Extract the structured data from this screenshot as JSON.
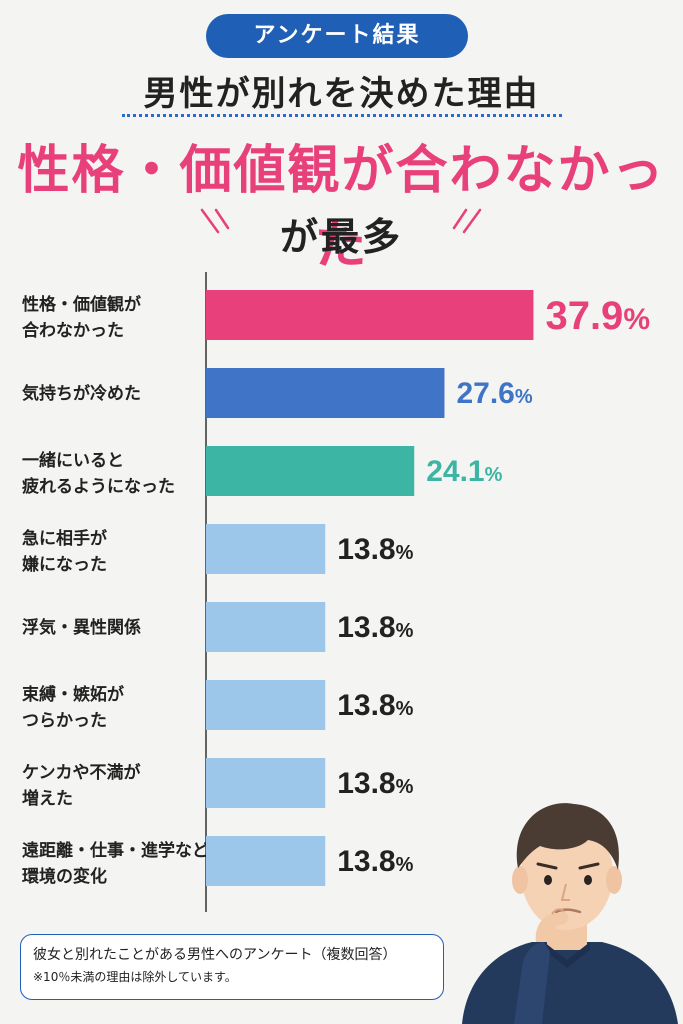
{
  "header": {
    "badge": "アンケート結果",
    "subtitle": "男性が別れを決めた理由",
    "headline": "性格・価値観が合わなかった",
    "headline2": "が最多"
  },
  "colors": {
    "accent_pink": "#e8407a",
    "blue": "#3f74c7",
    "teal": "#3db5a4",
    "light_blue": "#9cc6ea",
    "badge_blue": "#1f5fb5"
  },
  "chart_data": {
    "type": "bar",
    "orientation": "horizontal",
    "categories": [
      [
        "性格・価値観が",
        "合わなかった"
      ],
      [
        "気持ちが冷めた"
      ],
      [
        "一緒にいると",
        "疲れるようになった"
      ],
      [
        "急に相手が",
        "嫌になった"
      ],
      [
        "浮気・異性関係"
      ],
      [
        "束縛・嫉妬が",
        "つらかった"
      ],
      [
        "ケンカや不満が",
        "増えた"
      ],
      [
        "遠距離・仕事・進学など",
        "環境の変化"
      ]
    ],
    "values": [
      37.9,
      27.6,
      24.1,
      13.8,
      13.8,
      13.8,
      13.8,
      13.8
    ],
    "value_suffix": "%",
    "bar_colors": [
      "#e8407a",
      "#3f74c7",
      "#3db5a4",
      "#9cc6ea",
      "#9cc6ea",
      "#9cc6ea",
      "#9cc6ea",
      "#9cc6ea"
    ],
    "label_colors": [
      "#e8407a",
      "#3f74c7",
      "#3db5a4",
      "#222222",
      "#222222",
      "#222222",
      "#222222",
      "#222222"
    ]
  },
  "footnote": {
    "line1": "彼女と別れたことがある男性へのアンケート（複数回答）",
    "line2": "※10％未満の理由は除外しています。"
  }
}
